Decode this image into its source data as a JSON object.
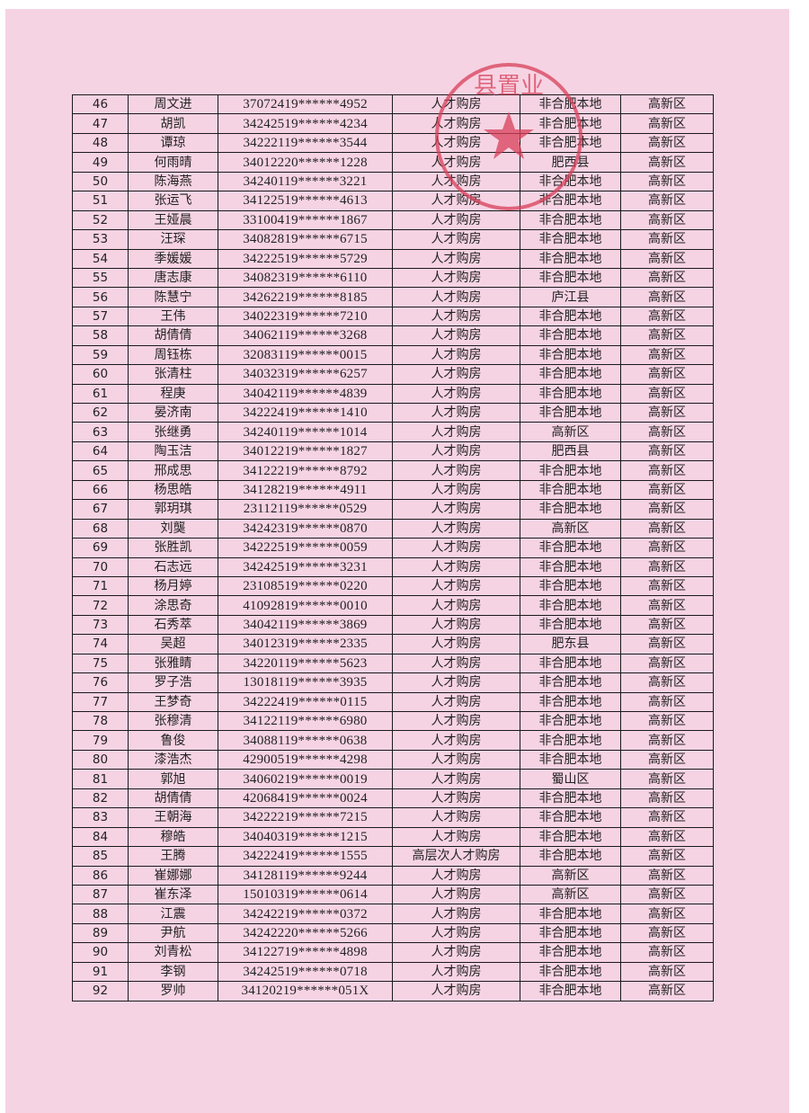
{
  "stamp": {
    "text": "县置业",
    "color": "#d8405a"
  },
  "columns": [
    "no",
    "name",
    "id",
    "type",
    "origin",
    "area"
  ],
  "rows": [
    [
      "46",
      "周文进",
      "37072419******4952",
      "人才购房",
      "非合肥本地",
      "高新区"
    ],
    [
      "47",
      "胡凯",
      "34242519******4234",
      "人才购房",
      "非合肥本地",
      "高新区"
    ],
    [
      "48",
      "谭琼",
      "34222119******3544",
      "人才购房",
      "非合肥本地",
      "高新区"
    ],
    [
      "49",
      "何雨晴",
      "34012220******1228",
      "人才购房",
      "肥西县",
      "高新区"
    ],
    [
      "50",
      "陈海燕",
      "34240119******3221",
      "人才购房",
      "非合肥本地",
      "高新区"
    ],
    [
      "51",
      "张运飞",
      "34122519******4613",
      "人才购房",
      "非合肥本地",
      "高新区"
    ],
    [
      "52",
      "王娅晨",
      "33100419******1867",
      "人才购房",
      "非合肥本地",
      "高新区"
    ],
    [
      "53",
      "汪琛",
      "34082819******6715",
      "人才购房",
      "非合肥本地",
      "高新区"
    ],
    [
      "54",
      "季媛媛",
      "34222519******5729",
      "人才购房",
      "非合肥本地",
      "高新区"
    ],
    [
      "55",
      "唐志康",
      "34082319******6110",
      "人才购房",
      "非合肥本地",
      "高新区"
    ],
    [
      "56",
      "陈慧宁",
      "34262219******8185",
      "人才购房",
      "庐江县",
      "高新区"
    ],
    [
      "57",
      "王伟",
      "34022319******7210",
      "人才购房",
      "非合肥本地",
      "高新区"
    ],
    [
      "58",
      "胡倩倩",
      "34062119******3268",
      "人才购房",
      "非合肥本地",
      "高新区"
    ],
    [
      "59",
      "周钰栋",
      "32083119******0015",
      "人才购房",
      "非合肥本地",
      "高新区"
    ],
    [
      "60",
      "张清柱",
      "34032319******6257",
      "人才购房",
      "非合肥本地",
      "高新区"
    ],
    [
      "61",
      "程庚",
      "34042119******4839",
      "人才购房",
      "非合肥本地",
      "高新区"
    ],
    [
      "62",
      "晏济南",
      "34222419******1410",
      "人才购房",
      "非合肥本地",
      "高新区"
    ],
    [
      "63",
      "张继勇",
      "34240119******1014",
      "人才购房",
      "高新区",
      "高新区"
    ],
    [
      "64",
      "陶玉洁",
      "34012219******1827",
      "人才购房",
      "肥西县",
      "高新区"
    ],
    [
      "65",
      "邢成思",
      "34122219******8792",
      "人才购房",
      "非合肥本地",
      "高新区"
    ],
    [
      "66",
      "杨思皓",
      "34128219******4911",
      "人才购房",
      "非合肥本地",
      "高新区"
    ],
    [
      "67",
      "郭玥琪",
      "23112119******0529",
      "人才购房",
      "非合肥本地",
      "高新区"
    ],
    [
      "68",
      "刘龑",
      "34242319******0870",
      "人才购房",
      "高新区",
      "高新区"
    ],
    [
      "69",
      "张胜凯",
      "34222519******0059",
      "人才购房",
      "非合肥本地",
      "高新区"
    ],
    [
      "70",
      "石志远",
      "34242519******3231",
      "人才购房",
      "非合肥本地",
      "高新区"
    ],
    [
      "71",
      "杨月婷",
      "23108519******0220",
      "人才购房",
      "非合肥本地",
      "高新区"
    ],
    [
      "72",
      "涂思奇",
      "41092819******0010",
      "人才购房",
      "非合肥本地",
      "高新区"
    ],
    [
      "73",
      "石秀萃",
      "34042119******3869",
      "人才购房",
      "非合肥本地",
      "高新区"
    ],
    [
      "74",
      "吴超",
      "34012319******2335",
      "人才购房",
      "肥东县",
      "高新区"
    ],
    [
      "75",
      "张雅睛",
      "34220119******5623",
      "人才购房",
      "非合肥本地",
      "高新区"
    ],
    [
      "76",
      "罗子浩",
      "13018119******3935",
      "人才购房",
      "非合肥本地",
      "高新区"
    ],
    [
      "77",
      "王梦奇",
      "34222419******0115",
      "人才购房",
      "非合肥本地",
      "高新区"
    ],
    [
      "78",
      "张穆清",
      "34122119******6980",
      "人才购房",
      "非合肥本地",
      "高新区"
    ],
    [
      "79",
      "鲁俊",
      "34088119******0638",
      "人才购房",
      "非合肥本地",
      "高新区"
    ],
    [
      "80",
      "漆浩杰",
      "42900519******4298",
      "人才购房",
      "非合肥本地",
      "高新区"
    ],
    [
      "81",
      "郭旭",
      "34060219******0019",
      "人才购房",
      "蜀山区",
      "高新区"
    ],
    [
      "82",
      "胡倩倩",
      "42068419******0024",
      "人才购房",
      "非合肥本地",
      "高新区"
    ],
    [
      "83",
      "王朝海",
      "34222219******7215",
      "人才购房",
      "非合肥本地",
      "高新区"
    ],
    [
      "84",
      "穆皓",
      "34040319******1215",
      "人才购房",
      "非合肥本地",
      "高新区"
    ],
    [
      "85",
      "王腾",
      "34222419******1555",
      "高层次人才购房",
      "非合肥本地",
      "高新区"
    ],
    [
      "86",
      "崔娜娜",
      "34128119******9244",
      "人才购房",
      "高新区",
      "高新区"
    ],
    [
      "87",
      "崔东泽",
      "15010319******0614",
      "人才购房",
      "高新区",
      "高新区"
    ],
    [
      "88",
      "江震",
      "34242219******0372",
      "人才购房",
      "非合肥本地",
      "高新区"
    ],
    [
      "89",
      "尹航",
      "34242220******5266",
      "人才购房",
      "非合肥本地",
      "高新区"
    ],
    [
      "90",
      "刘青松",
      "34122719******4898",
      "人才购房",
      "非合肥本地",
      "高新区"
    ],
    [
      "91",
      "李钢",
      "34242519******0718",
      "人才购房",
      "非合肥本地",
      "高新区"
    ],
    [
      "92",
      "罗帅",
      "34120219******051X",
      "人才购房",
      "非合肥本地",
      "高新区"
    ]
  ]
}
